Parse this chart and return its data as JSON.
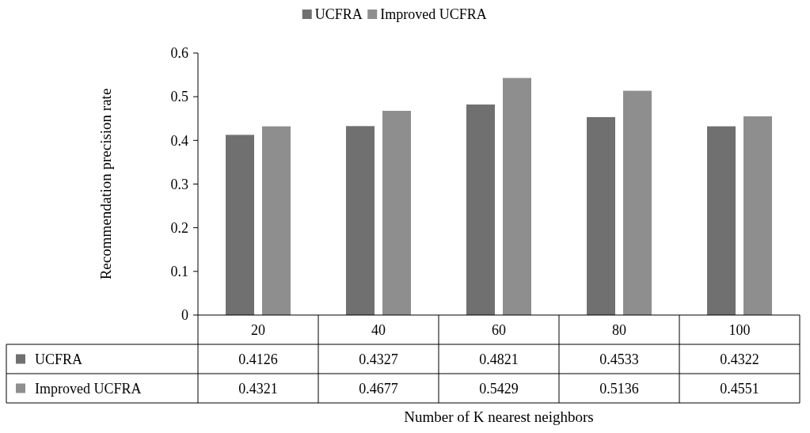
{
  "chart_data": {
    "type": "bar",
    "ylabel": "Recommendation precision rate",
    "xlabel": "Number of K nearest neighbors",
    "categories": [
      "20",
      "40",
      "60",
      "80",
      "100"
    ],
    "series": [
      {
        "name": "UCFRA",
        "color": "#707070",
        "values": [
          0.4126,
          0.4327,
          0.4821,
          0.4533,
          0.4322
        ]
      },
      {
        "name": "Improved UCFRA",
        "color": "#8e8e8e",
        "values": [
          0.4321,
          0.4677,
          0.5429,
          0.5136,
          0.4551
        ]
      }
    ],
    "ylim": [
      0,
      0.6
    ],
    "yticks": [
      0,
      0.1,
      0.2,
      0.3,
      0.4,
      0.5,
      0.6
    ],
    "data_labels": true,
    "legend": "top",
    "grid": false
  }
}
